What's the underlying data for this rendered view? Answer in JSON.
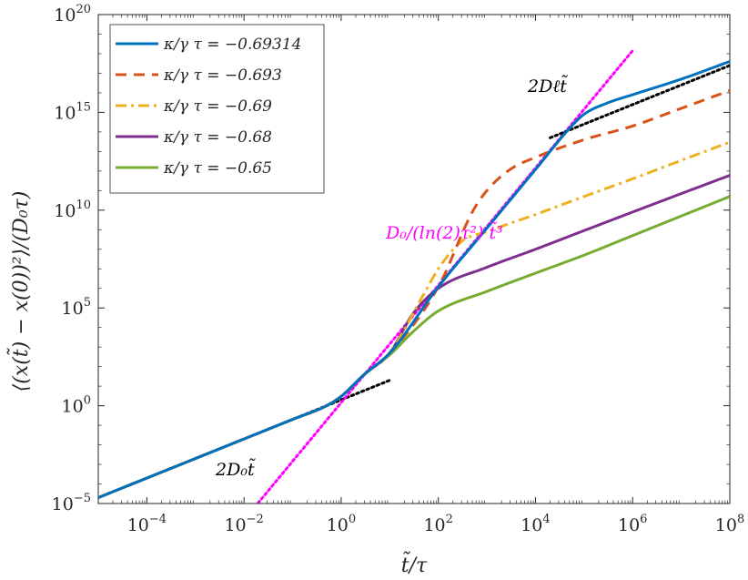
{
  "chart_data": {
    "type": "line",
    "xscale": "log",
    "yscale": "log",
    "xlim": [
      1e-05,
      100000000.0
    ],
    "ylim": [
      1e-05,
      1e+20
    ],
    "xlabel": "t̃/τ",
    "ylabel": "⟨(x(t̃) − x(0))²⟩/(D₀τ)",
    "x_ticks": [
      {
        "base": "10",
        "exp": "−4",
        "value": 0.0001
      },
      {
        "base": "10",
        "exp": "−2",
        "value": 0.01
      },
      {
        "base": "10",
        "exp": "0",
        "value": 1
      },
      {
        "base": "10",
        "exp": "2",
        "value": 100
      },
      {
        "base": "10",
        "exp": "4",
        "value": 10000
      },
      {
        "base": "10",
        "exp": "6",
        "value": 1000000
      },
      {
        "base": "10",
        "exp": "8",
        "value": 100000000
      }
    ],
    "y_ticks": [
      {
        "base": "10",
        "exp": "−5",
        "value": 1e-05
      },
      {
        "base": "10",
        "exp": "0",
        "value": 1
      },
      {
        "base": "10",
        "exp": "5",
        "value": 100000.0
      },
      {
        "base": "10",
        "exp": "10",
        "value": 10000000000.0
      },
      {
        "base": "10",
        "exp": "15",
        "value": 1000000000000000.0
      },
      {
        "base": "10",
        "exp": "20",
        "value": 1e+20
      }
    ],
    "grid": false,
    "legend_position": "top-left",
    "series": [
      {
        "name": "κ/γ τ = −0.69314",
        "color": "#0072BD",
        "dash": "solid",
        "x": [
          1e-05,
          0.001,
          0.1,
          0.5,
          1,
          3,
          10,
          100,
          1000,
          10000,
          50000,
          100000,
          300000,
          1000000,
          10000000,
          100000000
        ],
        "y": [
          2e-05,
          0.002,
          0.2,
          1,
          3,
          40,
          500,
          1200000.0,
          1200000000.0,
          1200000000000.0,
          150000000000000.0,
          800000000000000.0,
          3000000000000000.0,
          8000000000000000.0,
          5e+16,
          4e+17
        ]
      },
      {
        "name": "κ/γ τ = −0.693",
        "color": "#D95319",
        "dash": "dash",
        "x": [
          1e-05,
          0.001,
          0.1,
          0.5,
          1,
          3,
          10,
          100,
          500,
          1000,
          3000,
          10000,
          100000,
          1000000,
          10000000,
          100000000
        ],
        "y": [
          2e-05,
          0.002,
          0.2,
          1,
          3,
          40,
          500,
          1200000.0,
          8000000000.0,
          100000000000.0,
          1200000000000.0,
          5000000000000.0,
          40000000000000.0,
          200000000000000.0,
          1600000000000000.0,
          1.3e+16
        ]
      },
      {
        "name": "κ/γ τ = −0.69",
        "color": "#EDB120",
        "dash": "dashdot",
        "x": [
          1e-05,
          0.001,
          0.1,
          0.5,
          1,
          3,
          10,
          50,
          100,
          300,
          1000,
          10000,
          100000,
          1000000,
          10000000,
          100000000
        ],
        "y": [
          2e-05,
          0.002,
          0.2,
          1,
          3,
          40,
          500,
          500000.0,
          10000000.0,
          250000000.0,
          800000000.0,
          6000000000.0,
          50000000000.0,
          400000000000.0,
          3500000000000.0,
          30000000000000.0
        ]
      },
      {
        "name": "κ/γ τ = −0.68",
        "color": "#7E2F8E",
        "dash": "solid",
        "x": [
          1e-05,
          0.001,
          0.1,
          0.5,
          1,
          3,
          10,
          30,
          100,
          1000,
          10000,
          100000,
          1000000,
          10000000,
          100000000
        ],
        "y": [
          2e-05,
          0.002,
          0.2,
          1,
          3,
          40,
          500,
          50000.0,
          1000000.0,
          12000000.0,
          100000000.0,
          900000000.0,
          8000000000.0,
          70000000000.0,
          600000000000.0
        ]
      },
      {
        "name": "κ/γ τ = −0.65",
        "color": "#77AC30",
        "dash": "solid",
        "x": [
          1e-05,
          0.001,
          0.1,
          0.5,
          1,
          3,
          10,
          30,
          100,
          1000,
          10000,
          100000,
          1000000,
          10000000,
          100000000
        ],
        "y": [
          2e-05,
          0.002,
          0.2,
          1,
          3,
          40,
          400,
          6000.0,
          70000.0,
          700000.0,
          6000000.0,
          50000000.0,
          500000000.0,
          5000000000.0,
          50000000000.0
        ]
      }
    ],
    "reference_lines": [
      {
        "name": "2D0t̃",
        "color": "#000000",
        "dash": "dotted",
        "x": [
          1e-05,
          10
        ],
        "y": [
          2e-05,
          20
        ]
      },
      {
        "name": "D0/(ln(2)τ²) t̃³",
        "color": "#FF00FF",
        "dash": "dotted",
        "x": [
          0.01,
          1000000.0
        ],
        "y": [
          1.44e-06,
          1.44e+18
        ]
      },
      {
        "name": "2Dℓt̃",
        "color": "#000000",
        "dash": "dotted",
        "x": [
          20000,
          100000000
        ],
        "y": [
          50000000000000.0,
          2.5e+17
        ]
      }
    ],
    "annotations": [
      {
        "text": "2D₀t̃"
      },
      {
        "text": "2Dℓt̃"
      },
      {
        "text": "D₀/(ln(2)τ²) t̃³"
      }
    ]
  }
}
